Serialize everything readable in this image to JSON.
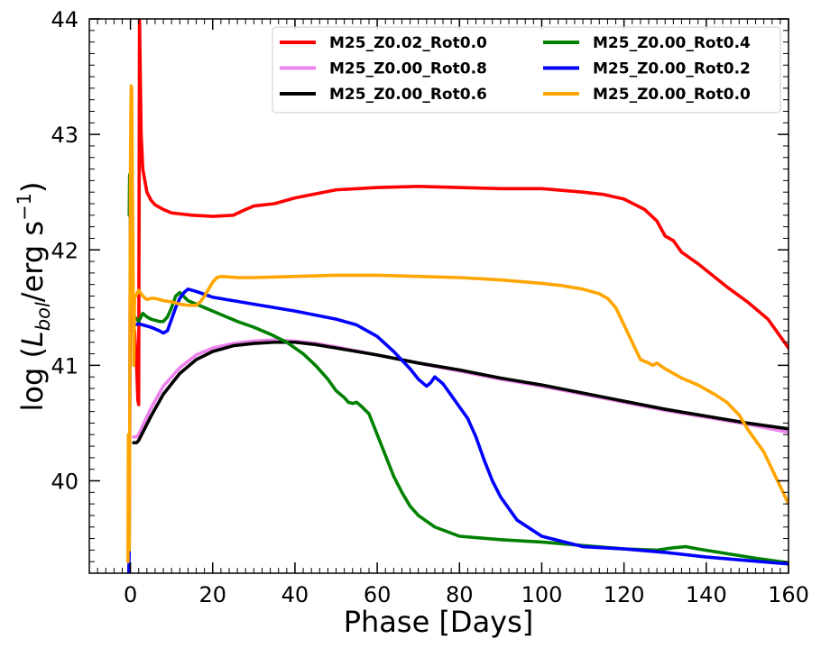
{
  "chart_data": {
    "type": "line",
    "title": "",
    "xlabel": "Phase [Days]",
    "ylabel_parts": {
      "prefix": "log (",
      "symbol": "L",
      "subscript": "bol",
      "unit": "/erg s",
      "superscript": "−1",
      "suffix": ")"
    },
    "xlim": [
      -10,
      160
    ],
    "ylim": [
      39.2,
      44
    ],
    "xticks": [
      0,
      20,
      40,
      60,
      80,
      100,
      120,
      140,
      160
    ],
    "yticks": [
      40,
      41,
      42,
      43,
      44
    ],
    "xtick_labels": [
      "0",
      "20",
      "40",
      "60",
      "80",
      "100",
      "120",
      "140",
      "160"
    ],
    "ytick_labels": [
      "40",
      "41",
      "42",
      "43",
      "44"
    ],
    "legend_position": "top-right",
    "series": [
      {
        "name": "M25_Z0.02_Rot0.0",
        "color": "#ff0000",
        "x": [
          0.5,
          1.0,
          1.5,
          1.8,
          2.0,
          2.2,
          2.4,
          2.6,
          2.8,
          3.0,
          3.5,
          4,
          5,
          6,
          8,
          10,
          15,
          20,
          25,
          28,
          30,
          35,
          40,
          50,
          60,
          70,
          80,
          90,
          100,
          110,
          115,
          120,
          125,
          128,
          130,
          131,
          132,
          134,
          138,
          145,
          150,
          155,
          158,
          160
        ],
        "y": [
          41.3,
          41.3,
          41.0,
          40.7,
          40.66,
          44.0,
          43.5,
          43.0,
          42.85,
          42.7,
          42.6,
          42.5,
          42.43,
          42.39,
          42.35,
          42.32,
          42.3,
          42.29,
          42.3,
          42.35,
          42.38,
          42.4,
          42.45,
          42.52,
          42.54,
          42.55,
          42.54,
          42.53,
          42.53,
          42.5,
          42.48,
          42.44,
          42.35,
          42.25,
          42.12,
          42.1,
          42.08,
          41.98,
          41.88,
          41.68,
          41.55,
          41.4,
          41.25,
          41.15
        ]
      },
      {
        "name": "M25_Z0.00_Rot0.8",
        "color": "#ee82ee",
        "x": [
          0.8,
          1.5,
          2,
          3,
          5,
          8,
          12,
          16,
          20,
          25,
          30,
          35,
          40,
          45,
          50,
          60,
          70,
          80,
          90,
          100,
          110,
          120,
          130,
          140,
          150,
          160
        ],
        "y": [
          40.38,
          40.38,
          40.4,
          40.48,
          40.63,
          40.82,
          40.98,
          41.09,
          41.15,
          41.19,
          41.21,
          41.22,
          41.21,
          41.19,
          41.16,
          41.09,
          41.02,
          40.95,
          40.88,
          40.82,
          40.75,
          40.68,
          40.61,
          40.55,
          40.49,
          40.42
        ]
      },
      {
        "name": "M25_Z0.00_Rot0.6",
        "color": "#000000",
        "x": [
          0.8,
          1.5,
          2,
          3,
          5,
          8,
          12,
          16,
          20,
          25,
          30,
          35,
          40,
          45,
          50,
          60,
          70,
          80,
          90,
          100,
          110,
          120,
          130,
          140,
          150,
          160
        ],
        "y": [
          40.33,
          40.33,
          40.35,
          40.42,
          40.56,
          40.75,
          40.93,
          41.05,
          41.12,
          41.17,
          41.19,
          41.2,
          41.2,
          41.18,
          41.15,
          41.09,
          41.02,
          40.96,
          40.89,
          40.83,
          40.76,
          40.69,
          40.62,
          40.56,
          40.5,
          40.45
        ]
      },
      {
        "name": "M25_Z0.00_Rot0.4",
        "color": "#008000",
        "x": [
          -0.3,
          -0.2,
          -0.1,
          0.0,
          0.2,
          0.4,
          0.6,
          1.0,
          2.0,
          3.0,
          4.0,
          5.0,
          6.0,
          7.0,
          8.0,
          9.0,
          10.0,
          11.0,
          12.0,
          14.0,
          18.0,
          22.0,
          26.0,
          30.0,
          34.0,
          38.0,
          42.0,
          45.0,
          48.0,
          50.0,
          52.0,
          53.0,
          54.0,
          55.0,
          56.0,
          58.0,
          60.0,
          62.0,
          64.0,
          66.0,
          68.0,
          70.0,
          74.0,
          80.0,
          90.0,
          100.0,
          110.0,
          120.0,
          128.0,
          132.0,
          135.0,
          138.0,
          145.0,
          152.0,
          160.0
        ],
        "y": [
          42.3,
          42.65,
          42.6,
          41.9,
          41.5,
          41.35,
          41.4,
          41.42,
          41.38,
          41.45,
          41.42,
          41.4,
          41.39,
          41.38,
          41.38,
          41.42,
          41.5,
          41.6,
          41.63,
          41.56,
          41.5,
          41.44,
          41.38,
          41.33,
          41.27,
          41.2,
          41.1,
          41.0,
          40.88,
          40.78,
          40.72,
          40.68,
          40.67,
          40.68,
          40.65,
          40.58,
          40.4,
          40.22,
          40.04,
          39.9,
          39.78,
          39.7,
          39.6,
          39.52,
          39.49,
          39.47,
          39.44,
          39.41,
          39.4,
          39.42,
          39.43,
          39.41,
          39.37,
          39.33,
          39.29
        ]
      },
      {
        "name": "M25_Z0.00_Rot0.2",
        "color": "#0000ff",
        "x": [
          -0.4,
          -0.3,
          -0.2,
          -0.1,
          0.0,
          0.2,
          0.5,
          1.0,
          2.0,
          3.0,
          5.0,
          7.0,
          8.0,
          9.0,
          10.0,
          11.0,
          12.0,
          13.0,
          14.0,
          16.0,
          20.0,
          25.0,
          30.0,
          40.0,
          50.0,
          55.0,
          60.0,
          64.0,
          68.0,
          70.0,
          72.0,
          73.0,
          74.0,
          76.0,
          78.0,
          80.0,
          82.0,
          84.0,
          86.0,
          88.0,
          90.0,
          94.0,
          100.0,
          110.0,
          120.0,
          130.0,
          140.0,
          150.0,
          160.0
        ],
        "y": [
          39.2,
          39.4,
          40.2,
          41.2,
          42.4,
          41.6,
          41.38,
          41.35,
          41.36,
          41.35,
          41.33,
          41.3,
          41.28,
          41.3,
          41.4,
          41.5,
          41.58,
          41.63,
          41.66,
          41.64,
          41.59,
          41.56,
          41.53,
          41.47,
          41.4,
          41.35,
          41.25,
          41.12,
          40.97,
          40.88,
          40.82,
          40.85,
          40.9,
          40.84,
          40.74,
          40.64,
          40.54,
          40.38,
          40.18,
          40.0,
          39.86,
          39.66,
          39.52,
          39.43,
          39.41,
          39.38,
          39.34,
          39.31,
          39.28
        ]
      },
      {
        "name": "M25_Z0.00_Rot0.0",
        "color": "#ffa500",
        "x": [
          -0.6,
          -0.5,
          -0.4,
          -0.3,
          -0.2,
          -0.1,
          0.0,
          0.1,
          0.2,
          0.3,
          0.5,
          0.8,
          1.0,
          1.3,
          1.6,
          2.0,
          3.0,
          4.0,
          5.0,
          6.0,
          7.0,
          8.0,
          10.0,
          12.0,
          14.0,
          16.0,
          17.0,
          18.0,
          19.0,
          20.0,
          21.0,
          22.0,
          26.0,
          30.0,
          40.0,
          50.0,
          60.0,
          70.0,
          80.0,
          90.0,
          100.0,
          105.0,
          110.0,
          114.0,
          116.0,
          118.0,
          120.0,
          122.0,
          124.0,
          126.0,
          127.0,
          128.0,
          130.0,
          134.0,
          138.0,
          142.0,
          145.0,
          148.0,
          150.0,
          152.0,
          154.0,
          156.0,
          158.0,
          160.0
        ],
        "y": [
          39.3,
          40.4,
          39.6,
          39.4,
          40.1,
          41.5,
          42.7,
          43.2,
          43.42,
          43.4,
          42.4,
          41.0,
          41.6,
          41.6,
          41.62,
          41.65,
          41.6,
          41.57,
          41.58,
          41.58,
          41.57,
          41.56,
          41.55,
          41.53,
          41.52,
          41.52,
          41.55,
          41.6,
          41.66,
          41.72,
          41.76,
          41.77,
          41.76,
          41.76,
          41.77,
          41.78,
          41.78,
          41.77,
          41.76,
          41.74,
          41.71,
          41.69,
          41.66,
          41.62,
          41.58,
          41.5,
          41.35,
          41.2,
          41.05,
          41.02,
          41.0,
          41.02,
          40.97,
          40.89,
          40.83,
          40.75,
          40.68,
          40.57,
          40.45,
          40.35,
          40.25,
          40.1,
          39.95,
          39.8
        ]
      }
    ],
    "legend_order": [
      0,
      1,
      2,
      3,
      4,
      5
    ]
  }
}
